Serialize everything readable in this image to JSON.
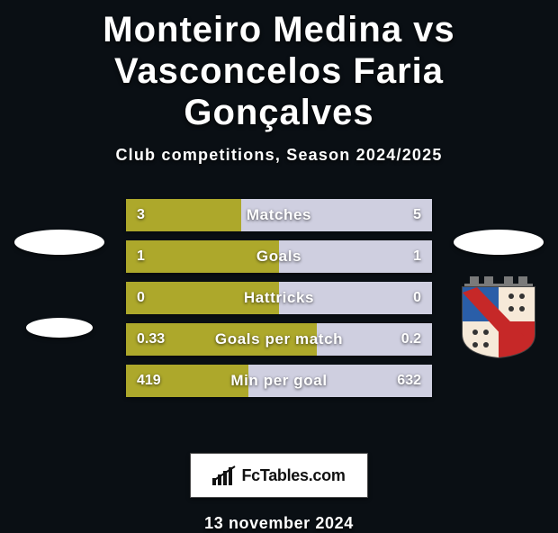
{
  "title_line1": "Monteiro Medina vs Vasconcelos Faria",
  "title_line2": "Gonçalves",
  "subtitle": "Club competitions, Season 2024/2025",
  "date": "13 november 2024",
  "branding_text": "FcTables.com",
  "colors": {
    "page_bg": "#0a0f14",
    "primary": "#ada82b",
    "secondary": "#cfcfe0",
    "bar_label": "#ffffff",
    "branding_bar_fill": "#111111"
  },
  "badge": {
    "shield_bg": "#f3f3f3",
    "crown": "#7a7a7a",
    "quad_tl": "#2a5ea8",
    "quad_tr": "#f6e9d8",
    "quad_bl": "#f6e9d8",
    "quad_br": "#c62828",
    "sash": "#c62828"
  },
  "rows": [
    {
      "label": "Matches",
      "left": "3",
      "right": "5",
      "left_pct": 37.5,
      "right_pct": 62.5
    },
    {
      "label": "Goals",
      "left": "1",
      "right": "1",
      "left_pct": 50.0,
      "right_pct": 50.0
    },
    {
      "label": "Hattricks",
      "left": "0",
      "right": "0",
      "left_pct": 50.0,
      "right_pct": 50.0
    },
    {
      "label": "Goals per match",
      "left": "0.33",
      "right": "0.2",
      "left_pct": 62.3,
      "right_pct": 37.7
    },
    {
      "label": "Min per goal",
      "left": "419",
      "right": "632",
      "left_pct": 39.9,
      "right_pct": 60.1
    }
  ],
  "typography": {
    "title_fontsize": 40,
    "subtitle_fontsize": 18,
    "bar_label_fontsize": 17,
    "bar_value_fontsize": 16,
    "date_fontsize": 18
  }
}
